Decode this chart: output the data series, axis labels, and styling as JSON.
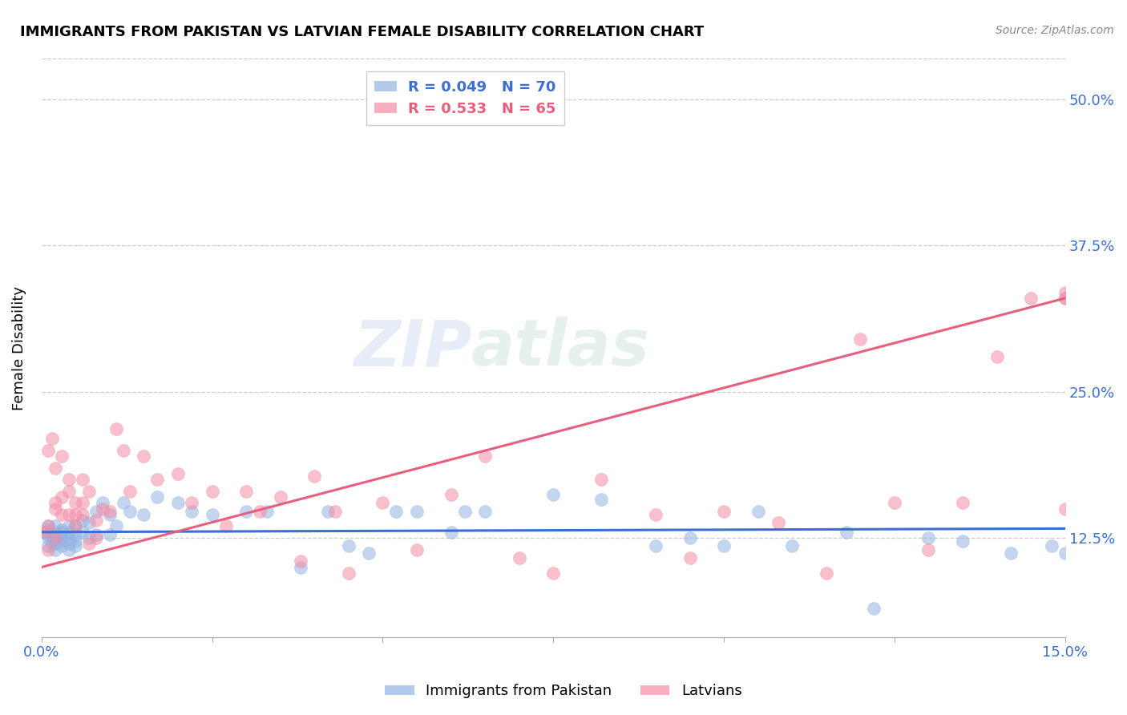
{
  "title": "IMMIGRANTS FROM PAKISTAN VS LATVIAN FEMALE DISABILITY CORRELATION CHART",
  "source": "Source: ZipAtlas.com",
  "ylabel_label": "Female Disability",
  "xlim": [
    0.0,
    0.15
  ],
  "ylim": [
    0.04,
    0.535
  ],
  "xtick_positions": [
    0.0,
    0.025,
    0.05,
    0.075,
    0.1,
    0.125,
    0.15
  ],
  "xtick_labels": [
    "0.0%",
    "",
    "",
    "",
    "",
    "",
    "15.0%"
  ],
  "ytick_vals": [
    0.125,
    0.25,
    0.375,
    0.5
  ],
  "ytick_labels": [
    "12.5%",
    "25.0%",
    "37.5%",
    "50.0%"
  ],
  "blue_color": "#92b4e3",
  "pink_color": "#f48ca4",
  "blue_line_color": "#3b6fd4",
  "pink_line_color": "#e85f7e",
  "blue_R": 0.049,
  "blue_N": 70,
  "pink_R": 0.533,
  "pink_N": 65,
  "watermark": "ZIPatlas",
  "blue_line_x0": 0.0,
  "blue_line_x1": 0.15,
  "blue_line_y0": 0.13,
  "blue_line_y1": 0.133,
  "pink_line_x0": 0.0,
  "pink_line_x1": 0.15,
  "pink_line_y0": 0.1,
  "pink_line_y1": 0.33,
  "blue_scatter_x": [
    0.0005,
    0.001,
    0.001,
    0.001,
    0.001,
    0.001,
    0.0015,
    0.0015,
    0.002,
    0.002,
    0.002,
    0.002,
    0.002,
    0.0025,
    0.003,
    0.003,
    0.003,
    0.003,
    0.003,
    0.004,
    0.004,
    0.004,
    0.004,
    0.004,
    0.005,
    0.005,
    0.005,
    0.005,
    0.006,
    0.006,
    0.007,
    0.007,
    0.008,
    0.008,
    0.009,
    0.01,
    0.01,
    0.011,
    0.012,
    0.013,
    0.015,
    0.017,
    0.02,
    0.022,
    0.025,
    0.03,
    0.033,
    0.038,
    0.042,
    0.045,
    0.048,
    0.052,
    0.055,
    0.06,
    0.062,
    0.065,
    0.075,
    0.082,
    0.09,
    0.095,
    0.1,
    0.105,
    0.11,
    0.118,
    0.122,
    0.13,
    0.135,
    0.142,
    0.148,
    0.15
  ],
  "blue_scatter_y": [
    0.13,
    0.128,
    0.135,
    0.125,
    0.132,
    0.118,
    0.12,
    0.128,
    0.115,
    0.125,
    0.13,
    0.12,
    0.135,
    0.128,
    0.122,
    0.13,
    0.118,
    0.125,
    0.132,
    0.115,
    0.125,
    0.13,
    0.12,
    0.135,
    0.118,
    0.122,
    0.128,
    0.135,
    0.13,
    0.14,
    0.125,
    0.138,
    0.148,
    0.128,
    0.155,
    0.128,
    0.145,
    0.135,
    0.155,
    0.148,
    0.145,
    0.16,
    0.155,
    0.148,
    0.145,
    0.148,
    0.148,
    0.1,
    0.148,
    0.118,
    0.112,
    0.148,
    0.148,
    0.13,
    0.148,
    0.148,
    0.162,
    0.158,
    0.118,
    0.125,
    0.118,
    0.148,
    0.118,
    0.13,
    0.065,
    0.125,
    0.122,
    0.112,
    0.118,
    0.112
  ],
  "pink_scatter_x": [
    0.0005,
    0.001,
    0.001,
    0.001,
    0.0015,
    0.002,
    0.002,
    0.002,
    0.002,
    0.003,
    0.003,
    0.003,
    0.004,
    0.004,
    0.004,
    0.005,
    0.005,
    0.005,
    0.006,
    0.006,
    0.006,
    0.007,
    0.007,
    0.008,
    0.008,
    0.009,
    0.01,
    0.011,
    0.012,
    0.013,
    0.015,
    0.017,
    0.02,
    0.022,
    0.025,
    0.027,
    0.03,
    0.032,
    0.035,
    0.038,
    0.04,
    0.043,
    0.045,
    0.05,
    0.055,
    0.06,
    0.065,
    0.07,
    0.075,
    0.082,
    0.09,
    0.095,
    0.1,
    0.108,
    0.115,
    0.12,
    0.125,
    0.13,
    0.135,
    0.14,
    0.145,
    0.15,
    0.15,
    0.15,
    0.15
  ],
  "pink_scatter_y": [
    0.13,
    0.135,
    0.2,
    0.115,
    0.21,
    0.155,
    0.185,
    0.125,
    0.15,
    0.16,
    0.195,
    0.145,
    0.165,
    0.145,
    0.175,
    0.155,
    0.135,
    0.145,
    0.175,
    0.145,
    0.155,
    0.12,
    0.165,
    0.14,
    0.125,
    0.15,
    0.148,
    0.218,
    0.2,
    0.165,
    0.195,
    0.175,
    0.18,
    0.155,
    0.165,
    0.135,
    0.165,
    0.148,
    0.16,
    0.105,
    0.178,
    0.148,
    0.095,
    0.155,
    0.115,
    0.162,
    0.195,
    0.108,
    0.095,
    0.175,
    0.145,
    0.108,
    0.148,
    0.138,
    0.095,
    0.295,
    0.155,
    0.115,
    0.155,
    0.28,
    0.33,
    0.15,
    0.33,
    0.33,
    0.335
  ]
}
